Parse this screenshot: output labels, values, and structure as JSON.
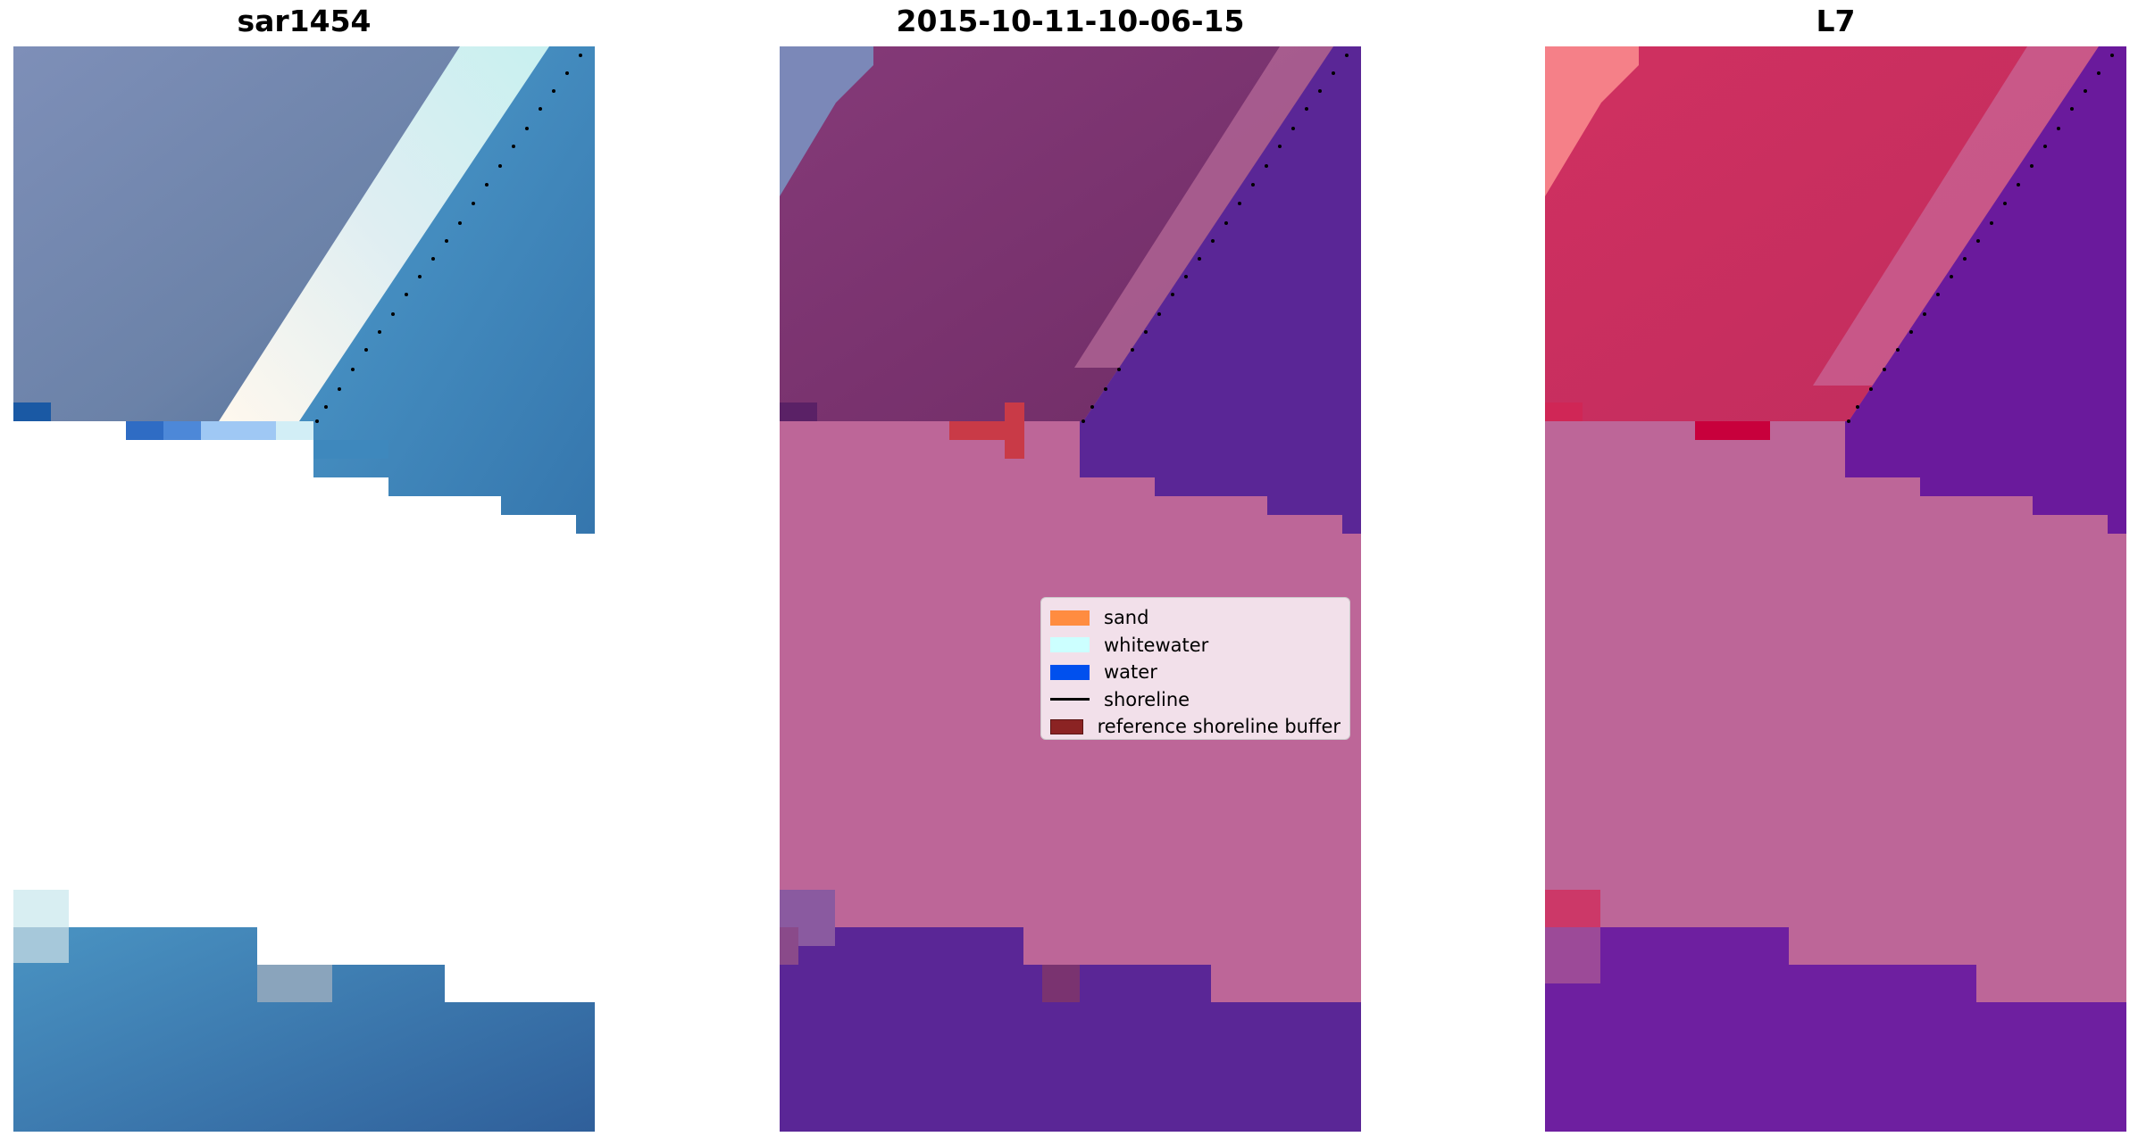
{
  "panels": [
    {
      "title": "sar1454"
    },
    {
      "title": "2015-10-11-10-06-15"
    },
    {
      "title": "L7"
    }
  ],
  "legend": {
    "items": [
      {
        "label": "sand",
        "color": "#ff8c40",
        "kind": "patch"
      },
      {
        "label": "whitewater",
        "color": "#ccffff",
        "kind": "patch"
      },
      {
        "label": "water",
        "color": "#0050ee",
        "kind": "patch"
      },
      {
        "label": "shoreline",
        "color": "#000000",
        "kind": "line"
      },
      {
        "label": "reference shoreline buffer",
        "color": "#8b2323",
        "kind": "patch"
      }
    ]
  },
  "colors": {
    "rgb_land": "#6f87ad",
    "rgb_sea": "#3c86bd",
    "rgb_whitewater": "#e8f2f4",
    "classified_land": "#7a3370",
    "classified_water": "#5a2696",
    "classified_nodata": "#bd6698",
    "classified_buffer": "#c93a47",
    "mndwi_land": "#c4305e",
    "mndwi_water": "#6a1a9c",
    "mndwi_nodata": "#bd6698"
  }
}
